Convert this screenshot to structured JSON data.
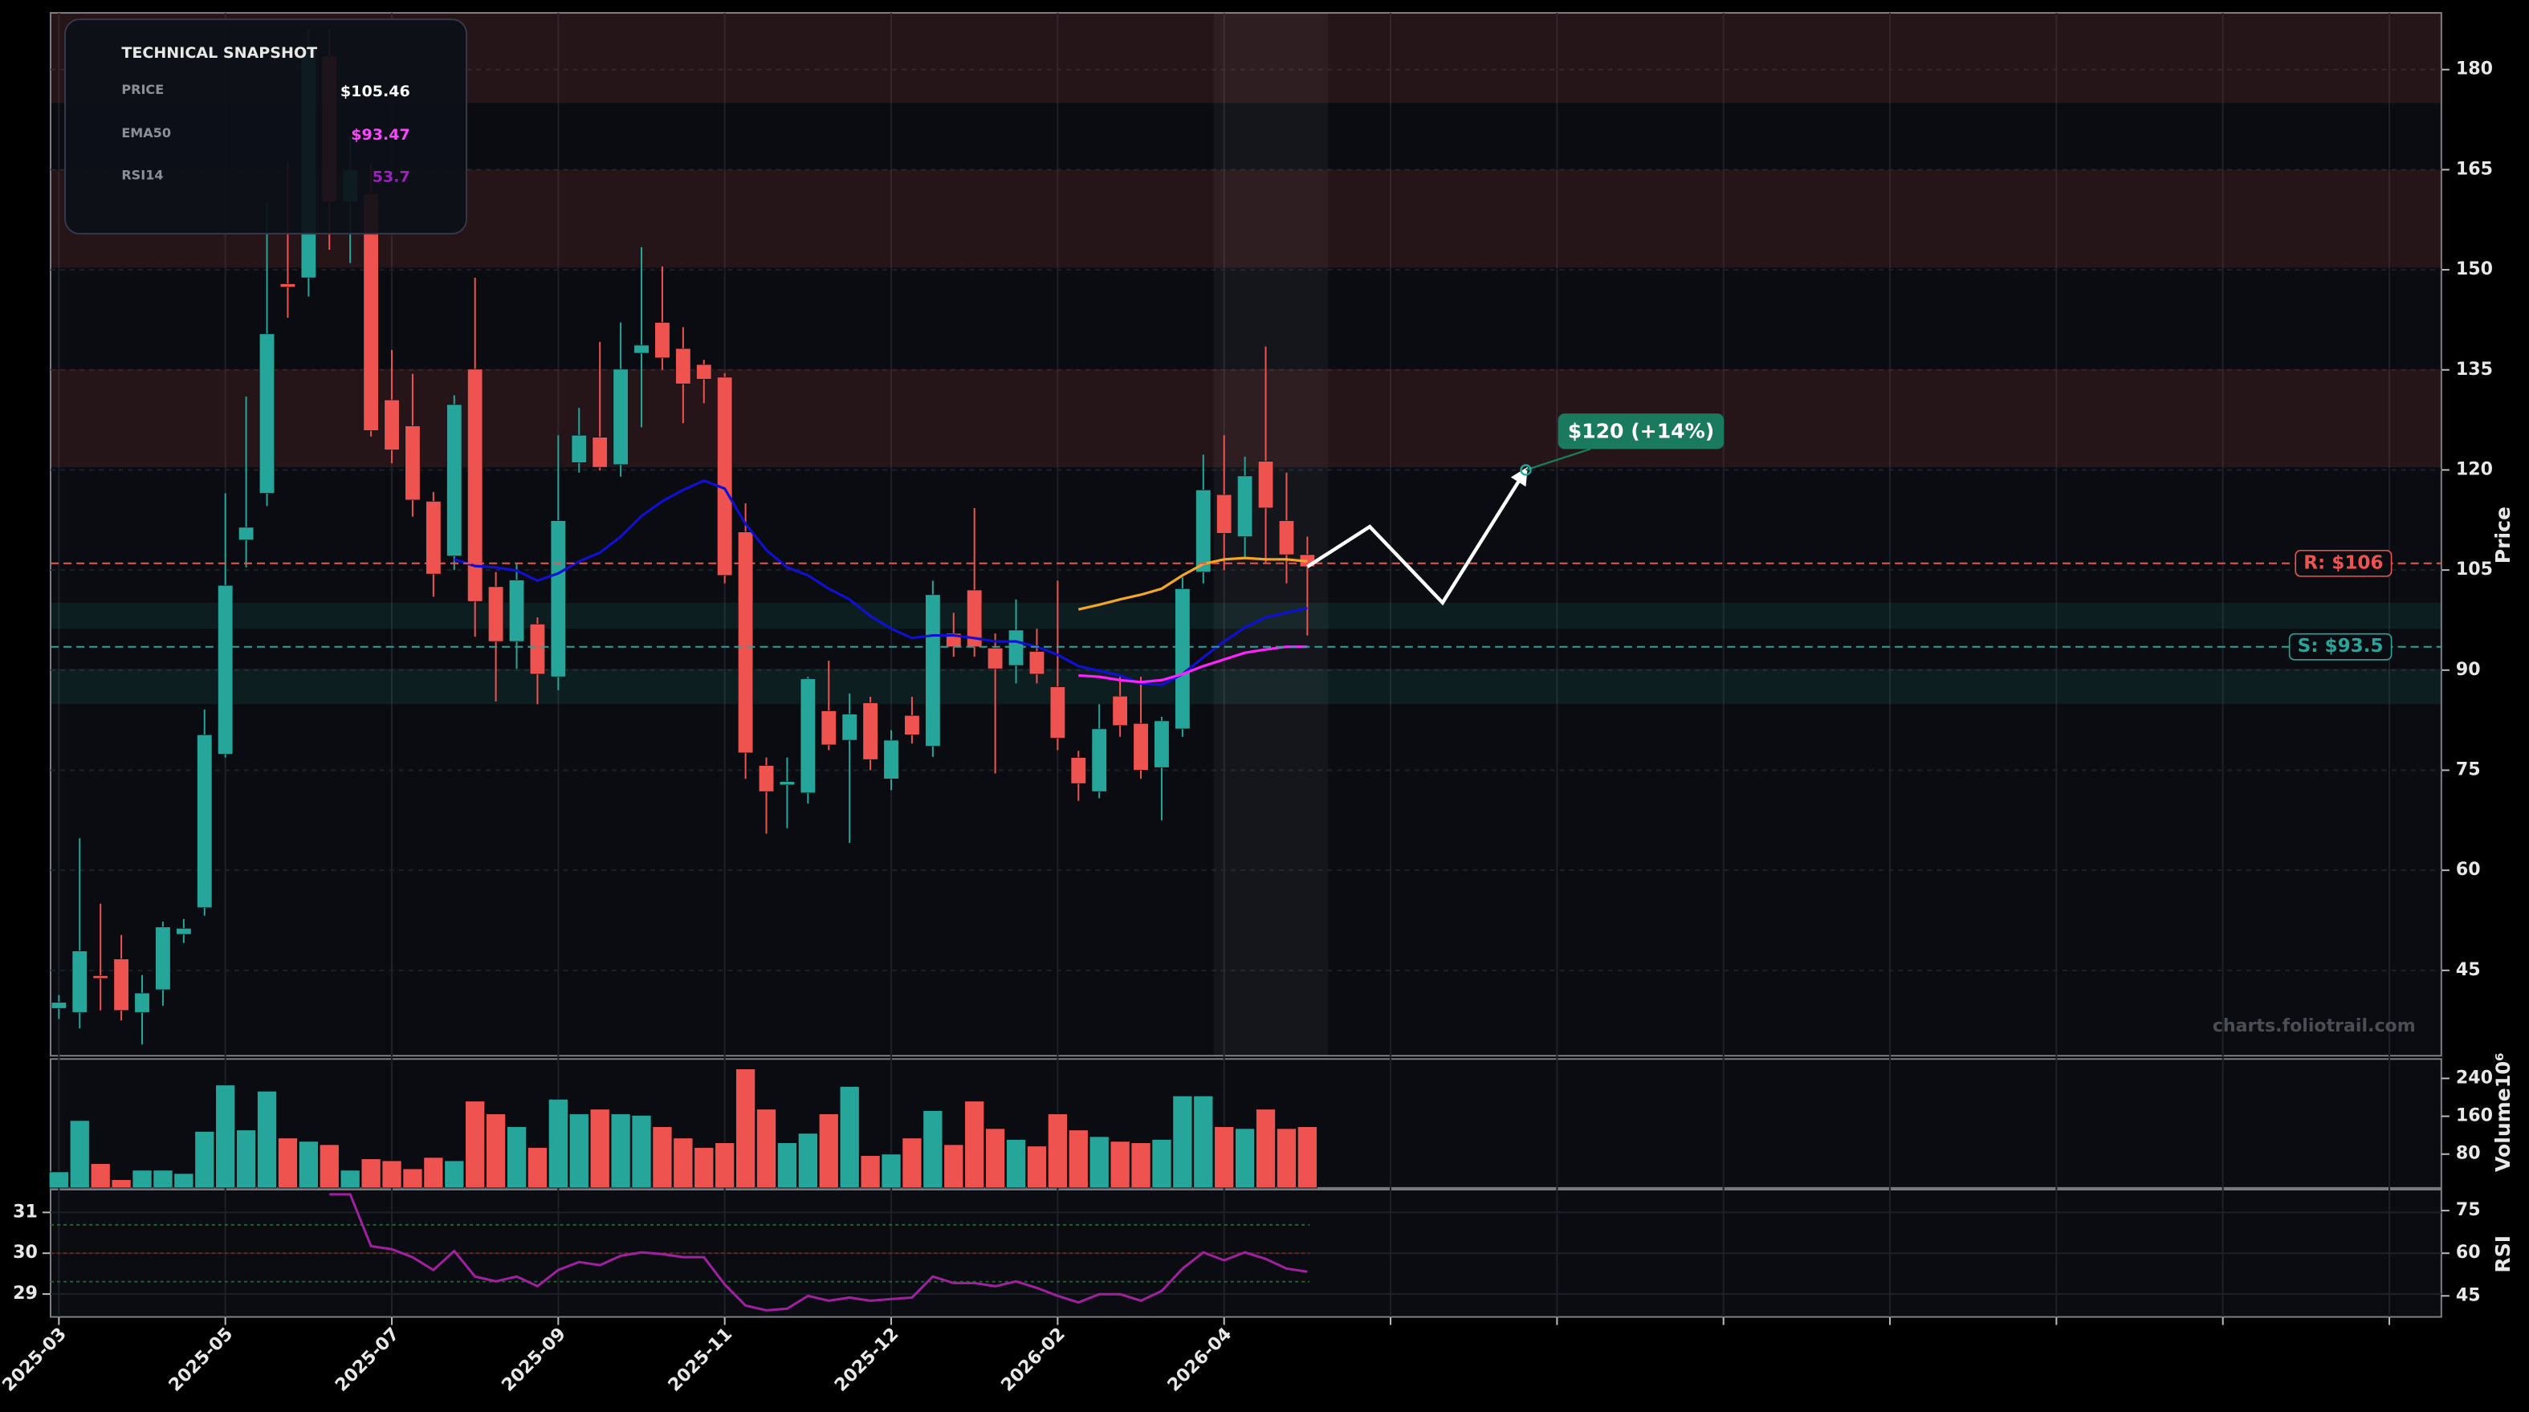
{
  "snapshot": {
    "title": "TECHNICAL SNAPSHOT",
    "rows": [
      {
        "label": "PRICE",
        "value": "$105.46",
        "color": "#ffffff"
      },
      {
        "label": "EMA50",
        "value": "$93.47",
        "color": "#ff44ff"
      },
      {
        "label": "RSI14",
        "value": "53.7",
        "color": "#a020c0"
      }
    ]
  },
  "watermark": "charts.foliotrail.com",
  "chart_data": [
    {
      "type": "candlestick",
      "ylabel": "Price",
      "grid": true,
      "up_color": "#26a69a",
      "down_color": "#ef5350",
      "xlim": [
        -0.4,
        114.5
      ],
      "xticks": [
        {
          "value": 0,
          "label": "2025-03"
        },
        {
          "value": 8,
          "label": "2025-05"
        },
        {
          "value": 16,
          "label": "2025-07"
        },
        {
          "value": 24,
          "label": "2025-09"
        },
        {
          "value": 32,
          "label": "2025-11"
        },
        {
          "value": 40,
          "label": "2025-12"
        },
        {
          "value": 48,
          "label": "2026-02"
        },
        {
          "value": 56,
          "label": "2026-04"
        },
        {
          "value": 64,
          "label": null
        },
        {
          "value": 72,
          "label": null
        },
        {
          "value": 80,
          "label": null
        },
        {
          "value": 88,
          "label": null
        },
        {
          "value": 96,
          "label": null
        },
        {
          "value": 104,
          "label": null
        },
        {
          "value": 112,
          "label": null
        }
      ],
      "ylim": [
        32.2,
        188.5
      ],
      "yticks": [
        45,
        60,
        75,
        90,
        105,
        120,
        135,
        150,
        165,
        180
      ],
      "open": [
        39.3,
        38.7,
        44.2,
        46.7,
        38.7,
        42.1,
        50.4,
        54.4,
        77.4,
        109.5,
        116.5,
        147.9,
        148.8,
        182,
        160.2,
        161.4,
        130.5,
        126.6,
        115.3,
        107.1,
        135.1,
        102.5,
        94.3,
        96.9,
        89,
        121.1,
        124.9,
        120.8,
        137.5,
        142.1,
        138.2,
        135.8,
        133.9,
        110.7,
        75.7,
        72.8,
        71.6,
        83.9,
        79.5,
        85.1,
        73.7,
        83.2,
        78.6,
        95.5,
        102,
        93.3,
        90.7,
        92.8,
        87.5,
        76.9,
        71.8,
        86.1,
        82,
        75.4,
        81.2,
        104.7,
        116.3,
        110,
        121.3,
        112.4,
        107.3
      ],
      "high": [
        41.3,
        64.8,
        55,
        50.3,
        44.3,
        52.3,
        52.7,
        84.1,
        116.5,
        131,
        160.2,
        166.2,
        186,
        186,
        170,
        166,
        138,
        134.4,
        116.7,
        131.2,
        148.8,
        104.7,
        105.9,
        97.9,
        125.2,
        129.3,
        139.2,
        142.1,
        153.4,
        150.5,
        141.4,
        136.5,
        134.5,
        115,
        76.9,
        76.9,
        89,
        91.4,
        86.5,
        86,
        81,
        86,
        103.4,
        98.6,
        114.3,
        95.5,
        100.6,
        96.2,
        103.4,
        77.9,
        84.9,
        89,
        89,
        83,
        103.9,
        122.3,
        125.2,
        122,
        138.5,
        119.6,
        110
      ],
      "low": [
        37.7,
        36.3,
        39,
        37.5,
        33.9,
        39.7,
        49.1,
        53.2,
        76.9,
        105.4,
        114.6,
        142.8,
        146,
        153,
        151,
        125,
        121,
        113,
        101,
        105,
        95,
        85.3,
        90.2,
        84.9,
        87,
        119.6,
        119.9,
        119,
        126.4,
        135,
        127,
        130,
        103,
        73.7,
        65.5,
        66.3,
        70,
        78,
        64.1,
        75,
        72,
        79,
        77,
        92,
        92,
        74.5,
        88,
        88,
        78,
        70.4,
        70.8,
        80,
        73.7,
        67.5,
        80,
        103,
        105,
        107,
        106,
        103,
        95.2
      ],
      "close": [
        40.2,
        47.9,
        43.8,
        39.0,
        41.6,
        51.5,
        51.3,
        80.3,
        102.7,
        111.4,
        140.4,
        147.4,
        183,
        160.2,
        165,
        125.9,
        123,
        115.5,
        104.4,
        129.8,
        100.3,
        94.3,
        103.5,
        89.4,
        112.4,
        125.2,
        120.4,
        135.1,
        138.7,
        136.8,
        132.9,
        133.6,
        104.2,
        77.6,
        71.8,
        73.3,
        88.7,
        78.8,
        83.4,
        76.6,
        79.5,
        80.3,
        101.3,
        93.5,
        93.5,
        90.2,
        96,
        89.4,
        79.8,
        73,
        81.2,
        81.7,
        75,
        82.4,
        102.2,
        117,
        110.5,
        119.1,
        114.3,
        107.3,
        105.5
      ],
      "lines": [
        {
          "color": "#1010d0",
          "values": [
            null,
            null,
            null,
            null,
            null,
            null,
            null,
            null,
            null,
            null,
            null,
            null,
            null,
            null,
            null,
            null,
            null,
            null,
            null,
            106.6,
            105.6,
            105.4,
            104.9,
            103.4,
            104.5,
            106.3,
            107.6,
            110,
            113.1,
            115.3,
            117,
            118.4,
            117.2,
            111.9,
            108,
            105.4,
            104.2,
            102.2,
            100.6,
            98.1,
            96.2,
            94.8,
            95.2,
            95.2,
            94.8,
            94.3,
            94.3,
            93.5,
            92.3,
            90.6,
            89.9,
            89.2,
            88,
            87.8,
            89.4,
            91.9,
            94.3,
            96.4,
            97.9,
            98.6,
            99.3
          ]
        },
        {
          "color": "#f5a623",
          "values": [
            null,
            null,
            null,
            null,
            null,
            null,
            null,
            null,
            null,
            null,
            null,
            null,
            null,
            null,
            null,
            null,
            null,
            null,
            null,
            null,
            null,
            null,
            null,
            null,
            null,
            null,
            null,
            null,
            null,
            null,
            null,
            null,
            null,
            null,
            null,
            null,
            null,
            null,
            null,
            null,
            null,
            null,
            null,
            null,
            null,
            null,
            null,
            null,
            null,
            99.1,
            99.8,
            100.6,
            101.3,
            102.2,
            104.2,
            105.9,
            106.6,
            106.8,
            106.6,
            106.6,
            106.3
          ]
        },
        {
          "color": "#ff22ff",
          "values": [
            null,
            null,
            null,
            null,
            null,
            null,
            null,
            null,
            null,
            null,
            null,
            null,
            null,
            null,
            null,
            null,
            null,
            null,
            null,
            null,
            null,
            null,
            null,
            null,
            null,
            null,
            null,
            null,
            null,
            null,
            null,
            null,
            null,
            null,
            null,
            null,
            null,
            null,
            null,
            null,
            null,
            null,
            null,
            null,
            null,
            null,
            null,
            null,
            null,
            89.2,
            89,
            88.5,
            88.2,
            88.5,
            89.4,
            90.6,
            91.6,
            92.6,
            93.1,
            93.5,
            93.5
          ]
        }
      ],
      "zones": [
        {
          "range": [
            175,
            190
          ],
          "color": "#ef5350"
        },
        {
          "range": [
            150.3,
            165
          ],
          "color": "#ef5350"
        },
        {
          "range": [
            120.4,
            135.1
          ],
          "color": "#ef5350"
        },
        {
          "range": [
            96.2,
            100.1
          ],
          "color": "#26a69a"
        },
        {
          "range": [
            84.9,
            90.2
          ],
          "color": "#26a69a"
        }
      ],
      "highlight": [
        55.5,
        61
      ],
      "levels": [
        {
          "value": 106,
          "label": "R: $106",
          "color": "#ef5350"
        },
        {
          "value": 93.5,
          "label": "S: $93.5",
          "color": "#26a69a"
        }
      ],
      "projection": {
        "color": "#ffffff",
        "x": [
          60,
          63,
          66.5,
          70.5
        ],
        "values": [
          105.5,
          111.5,
          100.1,
          120
        ]
      },
      "target": {
        "x": 70.5,
        "value": 120,
        "label": "$120 (+14%)",
        "color": "#1a7a5e"
      }
    },
    {
      "type": "bar",
      "ylabel": "Volume",
      "offset_label": "10⁶",
      "ylim": [
        8.5,
        281
      ],
      "yticks": [
        80,
        160,
        240
      ],
      "values": [
        42.5,
        151,
        60,
        26,
        46,
        46,
        39,
        128,
        226,
        131,
        213,
        114,
        107,
        100,
        46,
        70,
        66,
        49,
        73,
        66,
        192,
        165,
        138,
        94,
        196,
        165,
        175,
        165,
        162,
        138,
        114,
        94,
        104,
        260,
        175,
        104,
        124,
        165,
        223,
        77,
        80,
        114,
        172,
        100,
        192,
        134,
        111,
        97,
        165,
        131,
        117,
        107,
        104,
        111,
        203,
        203,
        138,
        134,
        175,
        134,
        138
      ]
    },
    {
      "type": "line",
      "ylabel": "RSI",
      "ylim": [
        28.44,
        31.56
      ],
      "yticks": [
        29,
        30,
        31
      ],
      "y2lim": [
        37.6,
        82.4
      ],
      "y2ticks": [
        45,
        60,
        75
      ],
      "levels": [
        {
          "value": 70,
          "color": "#1f6b2e"
        },
        {
          "value": 60,
          "color": "#7a2020"
        },
        {
          "value": 50,
          "color": "#1f6b2e"
        }
      ],
      "series": [
        {
          "color": "#a020a0",
          "axis": "y2",
          "values": [
            null,
            null,
            null,
            null,
            null,
            null,
            null,
            null,
            null,
            null,
            null,
            null,
            null,
            80.7,
            80.7,
            62.5,
            61.4,
            58.6,
            54.1,
            60.8,
            51.8,
            50.1,
            51.8,
            48.4,
            54.1,
            56.9,
            55.8,
            59.1,
            60.3,
            59.7,
            58.6,
            58.6,
            49,
            41.6,
            39.9,
            40.5,
            45,
            43.3,
            44.4,
            43.3,
            43.9,
            44.4,
            51.8,
            49.5,
            49.5,
            48.4,
            50.1,
            47.8,
            45,
            42.7,
            45.6,
            45.6,
            43.3,
            46.7,
            54.6,
            60.3,
            57.5,
            60.3,
            58,
            54.6,
            53.5
          ]
        }
      ]
    }
  ]
}
